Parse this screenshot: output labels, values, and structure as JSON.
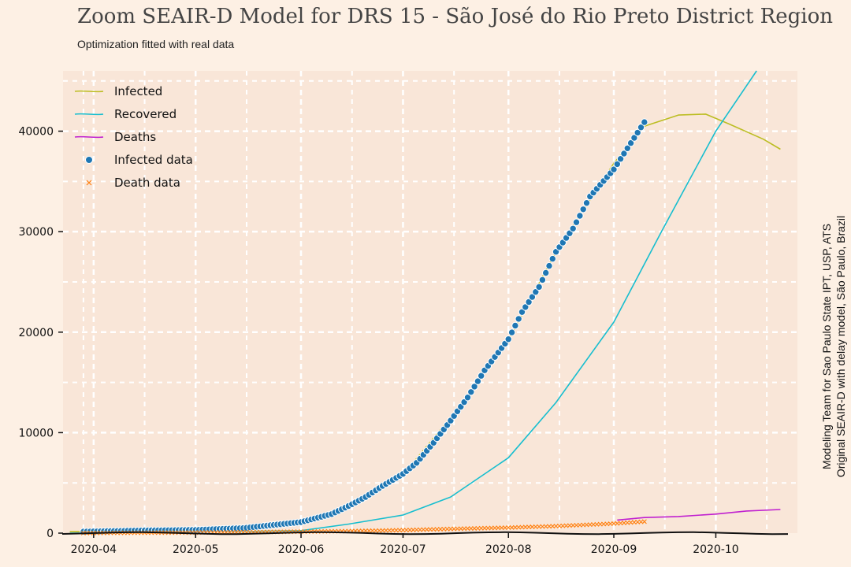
{
  "header": {
    "title": "Zoom SEAIR-D Model for DRS 15 - São José do Rio Preto District Region",
    "subtitle": "Optimization fitted with real data"
  },
  "credits": {
    "line1": "Modeling Team for Sao Paulo State IPT, USP, ATS",
    "line2": "Original SEAIR-D with delay model, São Paulo, Brazil"
  },
  "colors": {
    "infected": "#bcbd22",
    "recovered": "#17becf",
    "deaths": "#c020d0",
    "infected_data": "#1f77b4",
    "death_data": "#ff7f0e",
    "plot_background": "#f9e6d8",
    "grid": "#ffffff"
  },
  "chart_data": {
    "type": "line",
    "title": "Zoom SEAIR-D Model for DRS 15 - São José do Rio Preto District Region",
    "subtitle": "Optimization fitted with real data",
    "xlabel": "",
    "ylabel": "",
    "x_tick_labels": [
      "2020-04",
      "2020-05",
      "2020-06",
      "2020-07",
      "2020-08",
      "2020-09",
      "2020-10"
    ],
    "y_tick_labels": [
      "0",
      "10000",
      "20000",
      "30000",
      "40000"
    ],
    "xlim": [
      "2020-03-23",
      "2020-10-25"
    ],
    "ylim": [
      0,
      46000
    ],
    "grid": true,
    "legend_position": "top-left",
    "series": [
      {
        "name": "Infected",
        "kind": "line",
        "x": [
          "2020-03-25",
          "2020-04-15",
          "2020-05-01",
          "2020-05-15",
          "2020-06-01",
          "2020-06-15",
          "2020-07-01",
          "2020-07-15",
          "2020-08-01",
          "2020-08-15",
          "2020-09-01",
          "2020-09-10",
          "2020-09-20",
          "2020-09-28",
          "2020-10-05",
          "2020-10-15",
          "2020-10-20"
        ],
        "y": [
          150,
          260,
          320,
          500,
          1100,
          2500,
          5800,
          11500,
          19200,
          28000,
          36800,
          40500,
          41600,
          41700,
          40700,
          39200,
          38200
        ]
      },
      {
        "name": "Recovered",
        "kind": "line",
        "x": [
          "2020-03-25",
          "2020-05-01",
          "2020-06-01",
          "2020-06-15",
          "2020-07-01",
          "2020-07-15",
          "2020-08-01",
          "2020-08-15",
          "2020-09-01",
          "2020-09-15",
          "2020-10-01",
          "2020-10-10",
          "2020-10-13"
        ],
        "y": [
          0,
          100,
          250,
          900,
          1800,
          3600,
          7500,
          13000,
          21000,
          30000,
          40000,
          44500,
          46000
        ]
      },
      {
        "name": "Deaths",
        "kind": "line",
        "x": [
          "2020-09-02",
          "2020-09-10",
          "2020-09-20",
          "2020-10-01",
          "2020-10-10",
          "2020-10-20"
        ],
        "y": [
          1300,
          1550,
          1650,
          1900,
          2200,
          2350
        ]
      },
      {
        "name": "Infected data",
        "kind": "scatter",
        "x": [
          "2020-03-29",
          "2020-04-15",
          "2020-05-01",
          "2020-05-15",
          "2020-06-01",
          "2020-06-10",
          "2020-06-15",
          "2020-06-20",
          "2020-06-25",
          "2020-07-01",
          "2020-07-05",
          "2020-07-10",
          "2020-07-15",
          "2020-07-20",
          "2020-07-25",
          "2020-08-01",
          "2020-08-05",
          "2020-08-10",
          "2020-08-15",
          "2020-08-20",
          "2020-08-25",
          "2020-09-01",
          "2020-09-05",
          "2020-09-10"
        ],
        "y": [
          150,
          260,
          320,
          500,
          1100,
          1900,
          2700,
          3600,
          4700,
          5900,
          7000,
          9000,
          11200,
          13500,
          16200,
          19300,
          22000,
          24500,
          28000,
          30300,
          33500,
          36200,
          38300,
          40900
        ]
      },
      {
        "name": "Death data",
        "kind": "scatter",
        "x": [
          "2020-03-29",
          "2020-04-15",
          "2020-05-01",
          "2020-05-15",
          "2020-06-01",
          "2020-06-15",
          "2020-07-01",
          "2020-07-15",
          "2020-08-01",
          "2020-08-15",
          "2020-09-01",
          "2020-09-10"
        ],
        "y": [
          10,
          40,
          60,
          90,
          150,
          200,
          300,
          420,
          550,
          700,
          950,
          1150
        ]
      }
    ]
  }
}
